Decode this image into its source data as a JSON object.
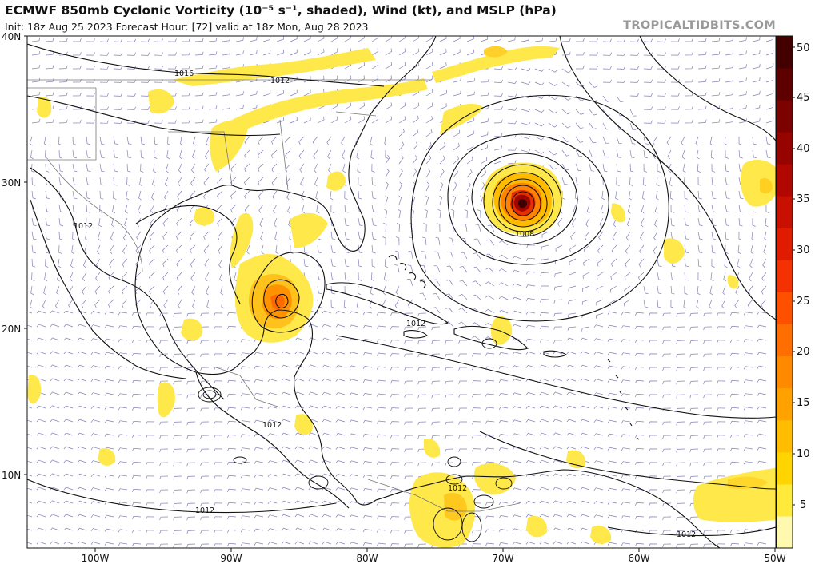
{
  "header": {
    "title": "ECMWF 850mb Cyclonic Vorticity (10⁻⁵ s⁻¹, shaded), Wind (kt), and MSLP (hPa)",
    "subtitle": "Init: 18z Aug 25 2023   Forecast Hour: [72]   valid at 18z Mon, Aug 28 2023",
    "credit": "TROPICALTIDBITS.COM"
  },
  "axes": {
    "lat_labels": [
      "40N",
      "30N",
      "20N",
      "10N"
    ],
    "lon_labels": [
      "100W",
      "90W",
      "80W",
      "70W",
      "60W",
      "50W"
    ]
  },
  "colorbar": {
    "ticks": [
      "50",
      "45",
      "40",
      "35",
      "30",
      "25",
      "20",
      "15",
      "10",
      "5"
    ],
    "colors": [
      "#fff9b0",
      "#ffea3c",
      "#ffd400",
      "#ffbc00",
      "#ffa200",
      "#ff8a00",
      "#ff6e00",
      "#ff5000",
      "#f43100",
      "#e01c00",
      "#c81000",
      "#b00800",
      "#960400",
      "#7c0200",
      "#5e0000",
      "#420000"
    ]
  },
  "isobars": {
    "labels": [
      "1016",
      "1012",
      "1012",
      "1012",
      "1008",
      "1012",
      "1012",
      "1012",
      "1012"
    ]
  },
  "colors": {
    "coast": "#111111",
    "isobar": "#111111",
    "wind_barb": "#5555a0",
    "border": "#777777"
  }
}
